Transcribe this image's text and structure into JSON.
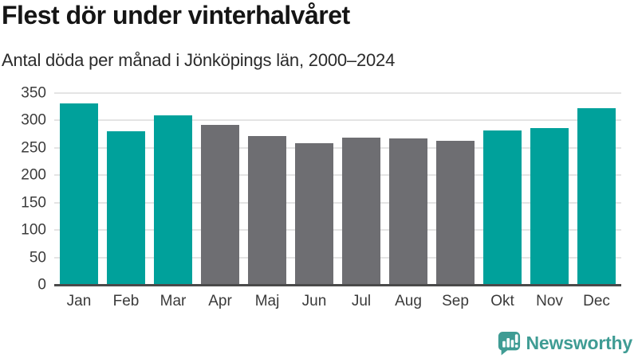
{
  "header": {
    "title": "Flest dör under vinterhalvåret",
    "subtitle": "Antal döda per månad i Jönköpings län, 2000–2024"
  },
  "chart_data": {
    "type": "bar",
    "title": "Flest dör under vinterhalvåret",
    "subtitle": "Antal döda per månad i Jönköpings län, 2000–2024",
    "categories": [
      "Jan",
      "Feb",
      "Mar",
      "Apr",
      "Maj",
      "Jun",
      "Jul",
      "Aug",
      "Sep",
      "Okt",
      "Nov",
      "Dec"
    ],
    "values": [
      331,
      281,
      309,
      292,
      272,
      258,
      269,
      267,
      263,
      282,
      286,
      323
    ],
    "bar_groups": [
      "winter",
      "winter",
      "winter",
      "summer",
      "summer",
      "summer",
      "summer",
      "summer",
      "summer",
      "winter",
      "winter",
      "winter"
    ],
    "group_colors": {
      "winter": "#00a19b",
      "summer": "#6e6e72"
    },
    "xlabel": "",
    "ylabel": "",
    "ylim": [
      0,
      350
    ],
    "yticks": [
      0,
      50,
      100,
      150,
      200,
      250,
      300,
      350
    ],
    "grid": true,
    "legend_position": "none",
    "gridline_color": "#e4e4e4",
    "axis_line_color": "#4a4a4a"
  },
  "footer": {
    "brand": "Newsworthy",
    "brand_color": "#3f9c94",
    "logo_icon": "speech-bubble-bar-chart-icon"
  }
}
